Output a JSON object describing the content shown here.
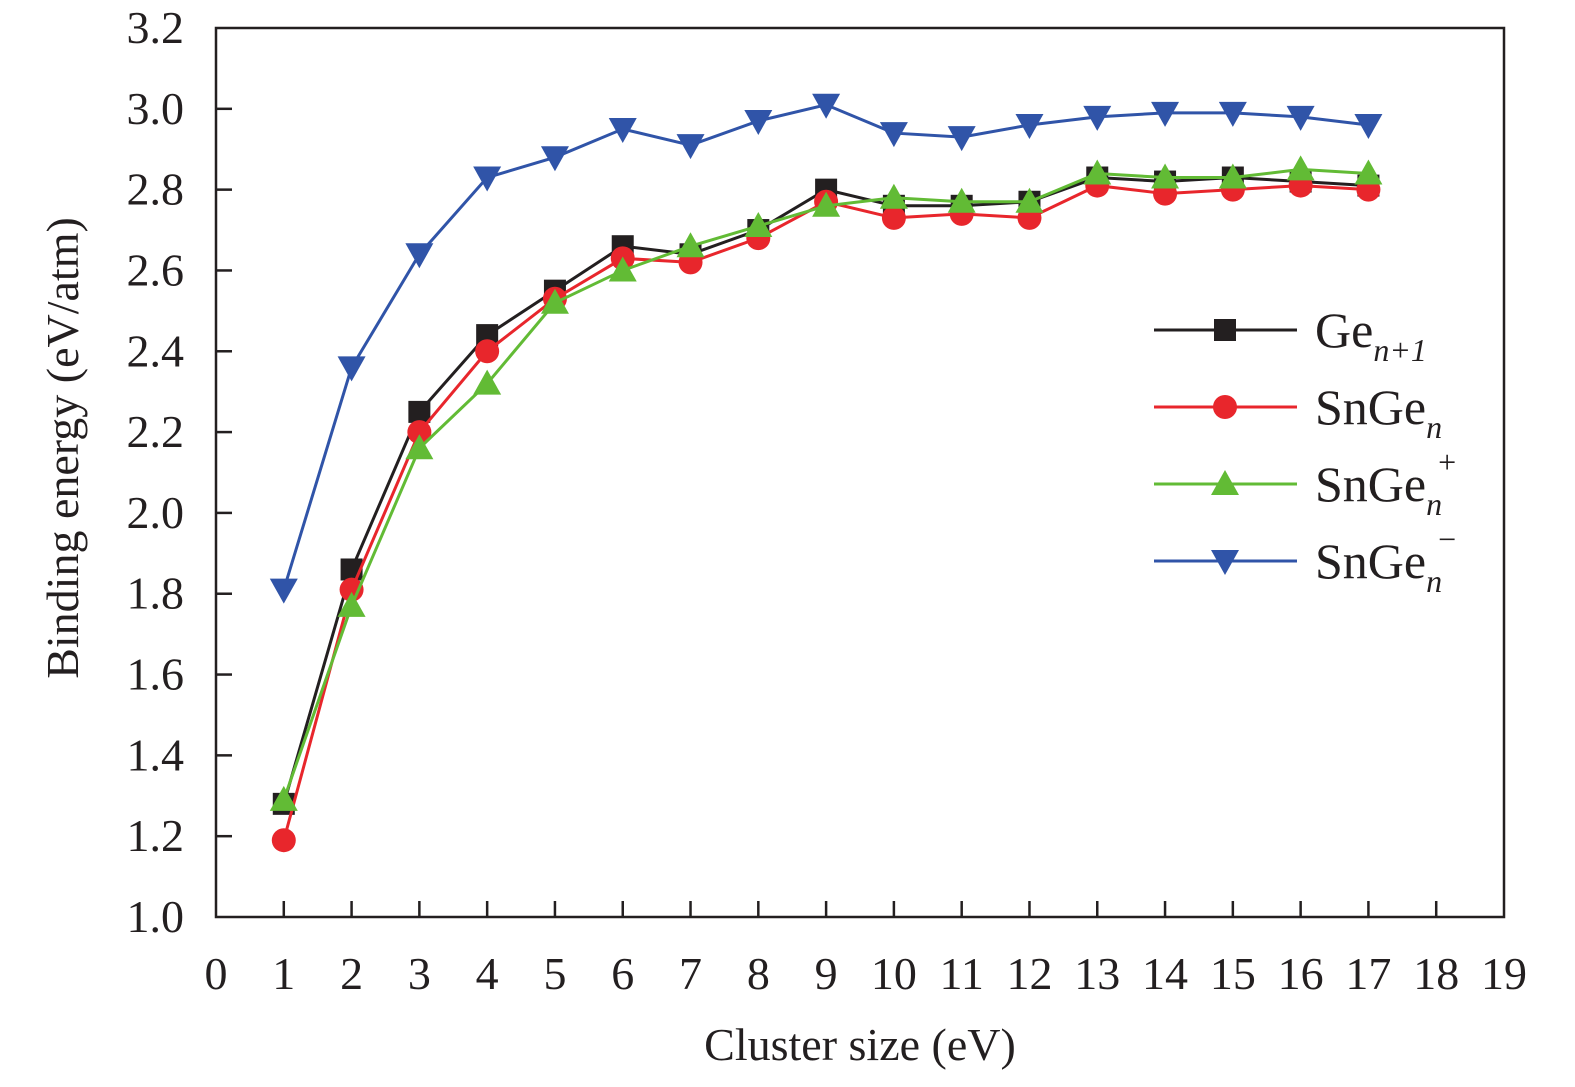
{
  "chart_data": {
    "type": "line",
    "title": "",
    "xlabel": "Cluster size (eV)",
    "ylabel": "Binding energy (eV/atm)",
    "xlim": [
      0,
      19
    ],
    "ylim": [
      1.0,
      3.2
    ],
    "xticks": [
      0,
      1,
      2,
      3,
      4,
      5,
      6,
      7,
      8,
      9,
      10,
      11,
      12,
      13,
      14,
      15,
      16,
      17,
      18,
      19
    ],
    "yticks": [
      "1.0",
      "1.2",
      "1.4",
      "1.6",
      "1.8",
      "2.0",
      "2.2",
      "2.4",
      "2.6",
      "2.8",
      "3.0",
      "3.2"
    ],
    "grid": false,
    "legend_position": "right",
    "x": [
      1,
      2,
      3,
      4,
      5,
      6,
      7,
      8,
      9,
      10,
      11,
      12,
      13,
      14,
      15,
      16,
      17
    ],
    "series": [
      {
        "name": "Ge_n+1",
        "base": "Ge",
        "sub": "n+1",
        "sup": "",
        "color": "#231f20",
        "marker": "square",
        "values": [
          1.28,
          1.86,
          2.25,
          2.44,
          2.55,
          2.66,
          2.64,
          2.7,
          2.8,
          2.76,
          2.76,
          2.77,
          2.83,
          2.82,
          2.83,
          2.82,
          2.81
        ]
      },
      {
        "name": "SnGe_n",
        "base": "SnGe",
        "sub": "n",
        "sup": "",
        "color": "#e8262c",
        "marker": "circle",
        "values": [
          1.19,
          1.81,
          2.2,
          2.4,
          2.53,
          2.63,
          2.62,
          2.68,
          2.77,
          2.73,
          2.74,
          2.73,
          2.81,
          2.79,
          2.8,
          2.81,
          2.8
        ]
      },
      {
        "name": "SnGe_n+",
        "base": "SnGe",
        "sub": "n",
        "sup": "+",
        "color": "#62bb35",
        "marker": "triangle-up",
        "values": [
          1.29,
          1.77,
          2.16,
          2.32,
          2.52,
          2.6,
          2.66,
          2.71,
          2.76,
          2.78,
          2.77,
          2.77,
          2.84,
          2.83,
          2.83,
          2.85,
          2.84
        ]
      },
      {
        "name": "SnGe_n-",
        "base": "SnGe",
        "sub": "n",
        "sup": "−",
        "color": "#3054a8",
        "marker": "triangle-down",
        "values": [
          1.81,
          2.36,
          2.64,
          2.83,
          2.88,
          2.95,
          2.91,
          2.97,
          3.01,
          2.94,
          2.93,
          2.96,
          2.98,
          2.99,
          2.99,
          2.98,
          2.96
        ]
      }
    ]
  }
}
